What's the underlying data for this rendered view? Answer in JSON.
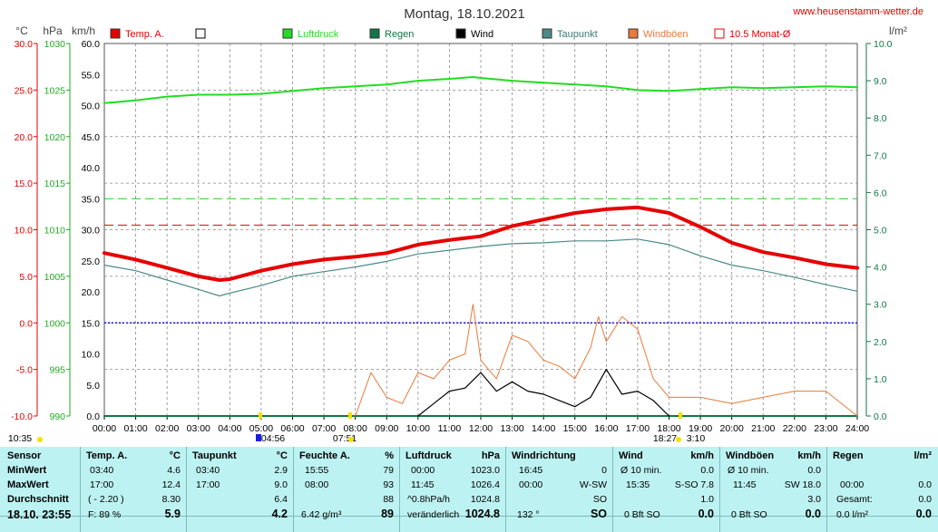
{
  "title": "Montag, 18.10.2021",
  "website": "www.heusenstamm-wetter.de",
  "units": {
    "left1": "°C",
    "left2": "hPa",
    "left3": "km/h",
    "right": "l/m²"
  },
  "legend": [
    {
      "label": "Temp. A.",
      "color": "#e60000",
      "box": "filled"
    },
    {
      "label": "",
      "color": "#ffffff",
      "box": "outline"
    },
    {
      "label": "Luftdruck",
      "color": "#22dd22",
      "box": "filled"
    },
    {
      "label": "Regen",
      "color": "#117744",
      "box": "filled"
    },
    {
      "label": "Wind",
      "color": "#000000",
      "box": "filled"
    },
    {
      "label": "Taupunkt",
      "color": "#4a8a88",
      "box": "filled"
    },
    {
      "label": "Windböen",
      "color": "#e87a3a",
      "box": "filled"
    },
    {
      "label": "10.5 Monat-Ø",
      "color": "#e60000",
      "box": "outline"
    }
  ],
  "axes": {
    "temp_ticks": [
      "30.0",
      "25.0",
      "20.0",
      "15.0",
      "10.0",
      "5.0",
      "0.0",
      "-5.0",
      "-10.0"
    ],
    "hpa_ticks": [
      "1030",
      "1025",
      "1020",
      "1015",
      "1010",
      "1005",
      "1000",
      "995",
      "990"
    ],
    "kmh_ticks": [
      "60.0",
      "55.0",
      "50.0",
      "45.0",
      "40.0",
      "35.0",
      "30.0",
      "25.0",
      "20.0",
      "15.0",
      "10.0",
      "5.0",
      "0.0"
    ],
    "rain_ticks": [
      "10.0",
      "9.0",
      "8.0",
      "7.0",
      "6.0",
      "5.0",
      "4.0",
      "3.0",
      "2.0",
      "1.0",
      "0.0"
    ],
    "x_ticks": [
      "00:00",
      "01:00",
      "02:00",
      "03:00",
      "04:00",
      "05:00",
      "06:00",
      "07:00",
      "08:00",
      "09:00",
      "10:00",
      "11:00",
      "12:00",
      "13:00",
      "14:00",
      "15:00",
      "16:00",
      "17:00",
      "18:00",
      "19:00",
      "20:00",
      "21:00",
      "22:00",
      "23:00",
      "24:00"
    ],
    "marker_labels": [
      "10:35",
      "04:56",
      "07:51",
      "18:27",
      "3:10"
    ]
  },
  "chart_data": {
    "type": "line",
    "title": "Montag, 18.10.2021",
    "x_unit": "hours",
    "xlim": [
      0,
      24
    ],
    "ylim_temp": [
      -10,
      30
    ],
    "ylim_pressure": [
      990,
      1030
    ],
    "ylim_wind": [
      0,
      60
    ],
    "ylim_rain": [
      0,
      10
    ],
    "month_avg_temp": 10.5,
    "series": [
      {
        "name": "Temp. A.",
        "axis": "temp",
        "color": "#e60000",
        "x": [
          0,
          1,
          2,
          3,
          3.67,
          4,
          5,
          6,
          7,
          8,
          9,
          10,
          11,
          12,
          13,
          14,
          15,
          16,
          17,
          18,
          19,
          20,
          21,
          22,
          23,
          24
        ],
        "y": [
          7.5,
          6.8,
          5.9,
          5.0,
          4.6,
          4.7,
          5.6,
          6.3,
          6.8,
          7.1,
          7.5,
          8.4,
          8.9,
          9.3,
          10.4,
          11.1,
          11.8,
          12.2,
          12.4,
          11.8,
          10.3,
          8.6,
          7.6,
          7.0,
          6.3,
          5.9
        ]
      },
      {
        "name": "Taupunkt",
        "axis": "temp",
        "color": "#4a8a88",
        "x": [
          0,
          1,
          2,
          3,
          3.67,
          4,
          5,
          6,
          7,
          8,
          9,
          10,
          11,
          12,
          13,
          14,
          15,
          16,
          17,
          18,
          19,
          20,
          21,
          22,
          23,
          24
        ],
        "y": [
          6.2,
          5.6,
          4.6,
          3.6,
          2.9,
          3.2,
          4.0,
          5.0,
          5.5,
          6.0,
          6.6,
          7.4,
          7.8,
          8.2,
          8.5,
          8.6,
          8.8,
          8.8,
          9.0,
          8.4,
          7.2,
          6.2,
          5.6,
          4.9,
          4.1,
          3.4
        ]
      },
      {
        "name": "Luftdruck",
        "axis": "pressure",
        "color": "#22dd22",
        "x": [
          0,
          1,
          2,
          3,
          4,
          5,
          6,
          7,
          8,
          9,
          10,
          11,
          11.75,
          12,
          13,
          14,
          15,
          16,
          17,
          18,
          19,
          20,
          21,
          22,
          23,
          24
        ],
        "y": [
          1023.6,
          1023.9,
          1024.3,
          1024.5,
          1024.5,
          1024.6,
          1024.9,
          1025.2,
          1025.4,
          1025.6,
          1026.0,
          1026.2,
          1026.4,
          1026.3,
          1026.0,
          1025.8,
          1025.6,
          1025.4,
          1025.0,
          1024.9,
          1025.1,
          1025.3,
          1025.2,
          1025.3,
          1025.4,
          1025.3
        ]
      },
      {
        "name": "Wind",
        "axis": "wind",
        "color": "#000000",
        "x": [
          10,
          10.5,
          11,
          11.5,
          12,
          12.5,
          13,
          13.5,
          14,
          14.5,
          15,
          15.5,
          16,
          16.5,
          17,
          17.5,
          18
        ],
        "y": [
          0,
          2.0,
          4.0,
          4.5,
          7.0,
          4.0,
          5.5,
          4.0,
          3.5,
          2.5,
          1.5,
          3.0,
          7.5,
          3.5,
          4.0,
          2.5,
          0
        ]
      },
      {
        "name": "Windböen",
        "axis": "wind",
        "color": "#e87a3a",
        "x": [
          8,
          8.5,
          9,
          9.5,
          10,
          10.5,
          11,
          11.5,
          11.75,
          12,
          12.5,
          13,
          13.5,
          14,
          14.5,
          15,
          15.5,
          15.75,
          16,
          16.5,
          17,
          17.5,
          18,
          19,
          20,
          21,
          22,
          23,
          24
        ],
        "y": [
          0,
          7.0,
          3.0,
          2.0,
          7.0,
          6.0,
          9.0,
          10.0,
          18.0,
          9.0,
          6.0,
          13.0,
          12.0,
          9.0,
          8.0,
          6.0,
          11.0,
          16.0,
          12.0,
          16.0,
          14.0,
          6.0,
          3.0,
          3.0,
          2.0,
          3.0,
          4.0,
          4.0,
          0
        ]
      },
      {
        "name": "Regen",
        "axis": "rain",
        "color": "#117744",
        "x": [
          0,
          24
        ],
        "y": [
          0,
          0
        ]
      }
    ]
  },
  "stats": {
    "sensor": {
      "header": "Sensor",
      "min": "MinWert",
      "max": "MaxWert",
      "avg": "Durchschnitt",
      "date": "18.10. 23:55"
    },
    "temp": {
      "header": "Temp. A.",
      "unit": "°C",
      "min_time": "03:40",
      "min_val": "4.6",
      "max_time": "17:00",
      "max_val": "12.4",
      "avg_note": "( - 2.20 )",
      "avg_val": "8.30",
      "cur_note": "F: 89 %",
      "cur_val": "5.9"
    },
    "dew": {
      "header": "Taupunkt",
      "unit": "°C",
      "min_time": "03:40",
      "min_val": "2.9",
      "max_time": "17:00",
      "max_val": "9.0",
      "avg_val": "6.4",
      "cur_val": "4.2"
    },
    "hum": {
      "header": "Feuchte A.",
      "unit": "%",
      "min_time": "15:55",
      "min_val": "79",
      "max_time": "08:00",
      "max_val": "93",
      "avg_val": "88",
      "cur_note": "6.42 g/m³",
      "cur_val": "89"
    },
    "press": {
      "header": "Luftdruck",
      "unit": "hPa",
      "min_time": "00:00",
      "min_val": "1023.0",
      "max_time": "11:45",
      "max_val": "1026.4",
      "avg_note": "^0.8hPa/h",
      "avg_val": "1024.8",
      "cur_note": "veränderlich",
      "cur_val": "1024.8"
    },
    "dir": {
      "header": "Windrichtung",
      "min_time": "16:45",
      "min_val": "0",
      "max_time": "00:00",
      "max_val": "W-SW",
      "avg_val": "SO",
      "cur_note": "132 °",
      "cur_val": "SO"
    },
    "wind": {
      "header": "Wind",
      "unit": "km/h",
      "min_time": "Ø 10 min.",
      "min_val": "0.0",
      "max_time": "15:35",
      "max_val": "S-SO 7.8",
      "avg_val": "1.0",
      "cur_note": "0 Bft SO",
      "cur_val": "0.0"
    },
    "gust": {
      "header": "Windböen",
      "unit": "km/h",
      "min_time": "Ø 10 min.",
      "min_val": "0.0",
      "max_time": "11:45",
      "max_val": "SW 18.0",
      "avg_val": "3.0",
      "cur_note": "0 Bft SO",
      "cur_val": "0.0"
    },
    "rain": {
      "header": "Regen",
      "unit": "l/m²",
      "max_time": "00:00",
      "max_val": "0.0",
      "avg_note": "Gesamt:",
      "avg_val": "0.0",
      "cur_note": "0.0 l/m²",
      "cur_val": "0.0"
    }
  }
}
